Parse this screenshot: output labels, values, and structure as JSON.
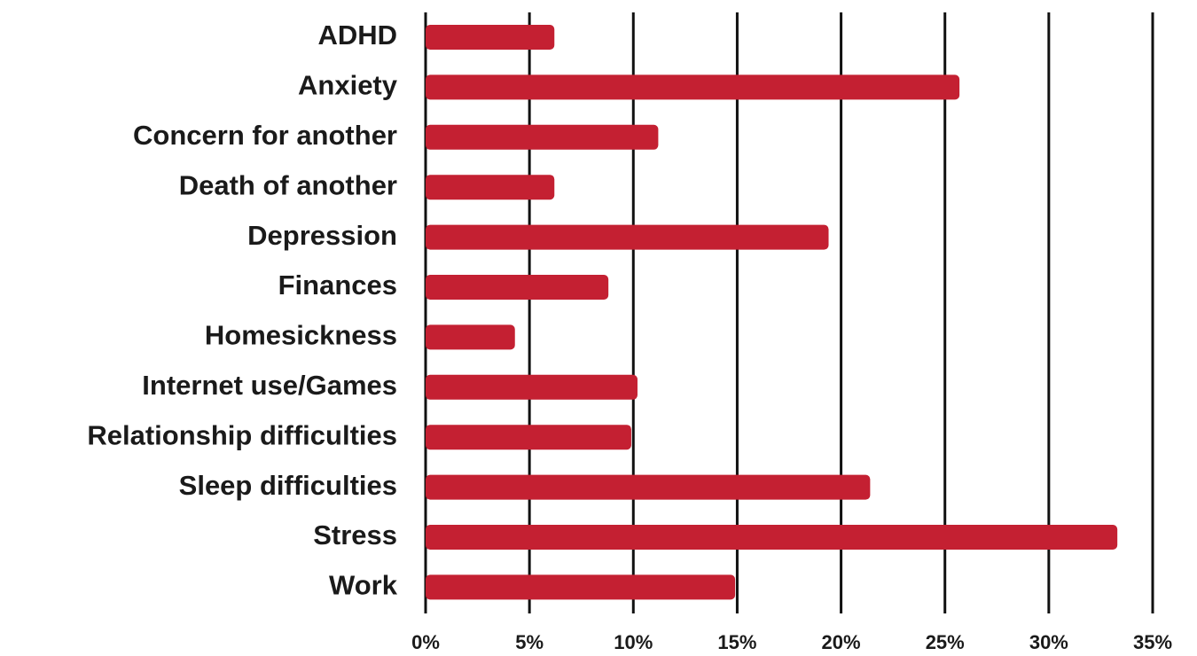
{
  "chart_data": {
    "type": "bar",
    "orientation": "horizontal",
    "categories": [
      "ADHD",
      "Anxiety",
      "Concern for another",
      "Death of another",
      "Depression",
      "Finances",
      "Homesickness",
      "Internet use/Games",
      "Relationship difficulties",
      "Sleep difficulties",
      "Stress",
      "Work"
    ],
    "values": [
      6.2,
      25.7,
      11.2,
      6.2,
      19.4,
      8.8,
      4.3,
      10.2,
      9.9,
      21.4,
      33.3,
      14.9
    ],
    "color": "#c42032",
    "xlim": [
      0,
      35
    ],
    "xticks": [
      {
        "value": 0,
        "label": "0%"
      },
      {
        "value": 5,
        "label": "5%"
      },
      {
        "value": 10,
        "label": "10%"
      },
      {
        "value": 15,
        "label": "15%"
      },
      {
        "value": 20,
        "label": "20%"
      },
      {
        "value": 25,
        "label": "25%"
      },
      {
        "value": 30,
        "label": "30%"
      },
      {
        "value": 35,
        "label": "35%"
      }
    ],
    "grid": true,
    "grid_color": "#111111"
  }
}
